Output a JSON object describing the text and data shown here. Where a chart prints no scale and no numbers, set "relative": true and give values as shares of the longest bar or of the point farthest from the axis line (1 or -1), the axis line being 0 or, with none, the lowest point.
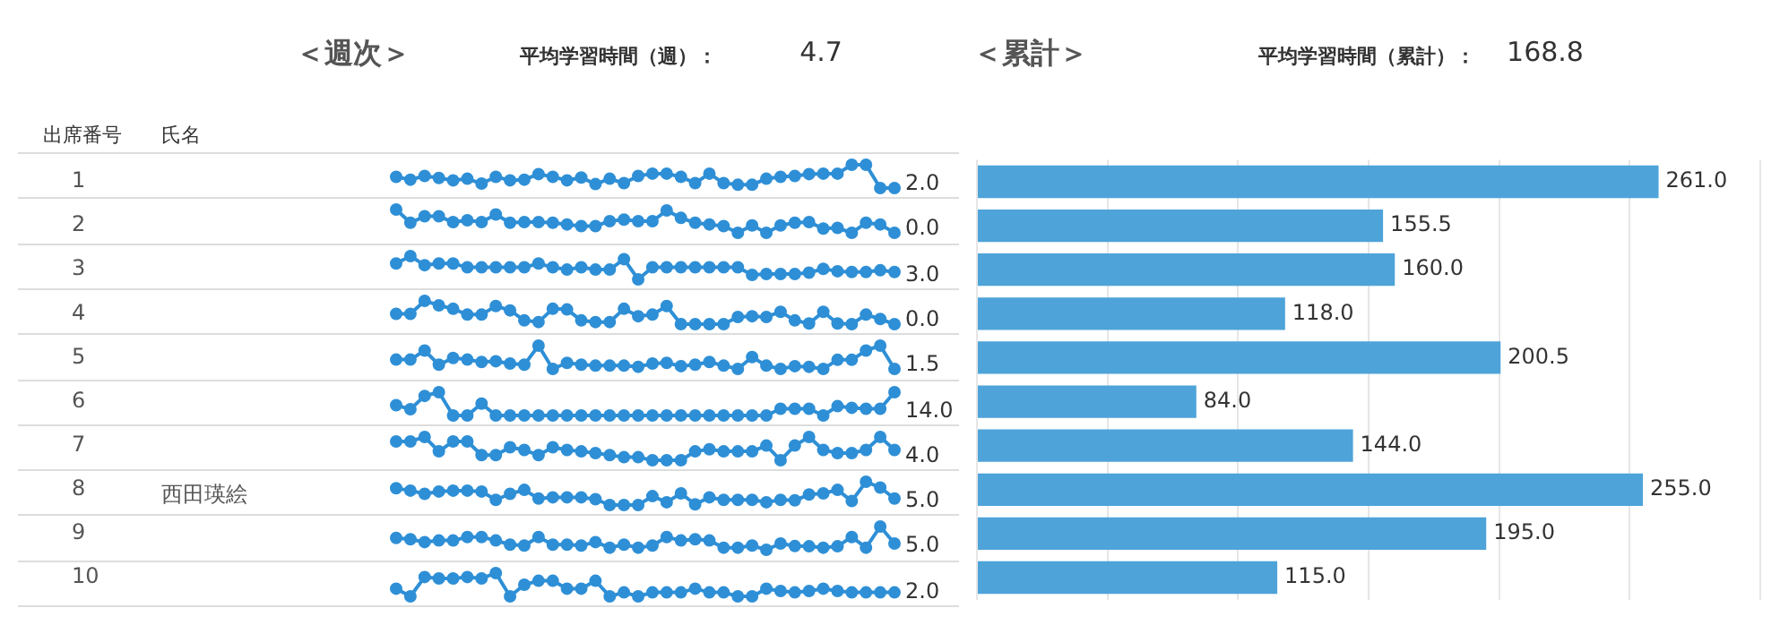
{
  "chart_data": [
    {
      "type": "other",
      "title": "＜週次＞",
      "annotations": [
        "平均学習時間（週）：",
        "4.7",
        "出席番号",
        "氏名",
        "西田瑛絵"
      ]
    },
    {
      "type": "line",
      "relative": true,
      "tick_labels": false,
      "marker": "circle",
      "color": "#2e8fd6",
      "categories": [
        null,
        null,
        null,
        null,
        null,
        null,
        null,
        null,
        null,
        null,
        null,
        null,
        null,
        null,
        null,
        null,
        null,
        null,
        null,
        null,
        null,
        null,
        null,
        null,
        null,
        null,
        null,
        null,
        null,
        null,
        null,
        null,
        null,
        null,
        null,
        null
      ],
      "values": [
        0.48,
        0.36,
        0.52,
        0.43,
        0.33,
        0.4,
        0.19,
        0.48,
        0.33,
        0.36,
        0.6,
        0.48,
        0.33,
        0.45,
        0.17,
        0.4,
        0.21,
        0.52,
        0.62,
        0.62,
        0.48,
        0.21,
        0.62,
        0.21,
        0.14,
        0.14,
        0.4,
        0.48,
        0.52,
        0.6,
        0.62,
        0.62,
        1,
        1,
        0,
        0
      ],
      "annotations": [
        "2.0"
      ]
    },
    {
      "type": "line",
      "relative": true,
      "tick_labels": false,
      "marker": "circle",
      "color": "#2e8fd6",
      "categories": [
        null,
        null,
        null,
        null,
        null,
        null,
        null,
        null,
        null,
        null,
        null,
        null,
        null,
        null,
        null,
        null,
        null,
        null,
        null,
        null,
        null,
        null,
        null,
        null,
        null,
        null,
        null,
        null,
        null,
        null,
        null,
        null,
        null,
        null,
        null,
        null
      ],
      "values": [
        1,
        0.43,
        0.71,
        0.71,
        0.46,
        0.54,
        0.46,
        0.79,
        0.43,
        0.46,
        0.46,
        0.43,
        0.36,
        0.29,
        0.29,
        0.5,
        0.57,
        0.5,
        0.5,
        0.96,
        0.64,
        0.43,
        0.36,
        0.29,
        0,
        0.32,
        0,
        0.32,
        0.43,
        0.46,
        0.18,
        0.21,
        0,
        0.43,
        0.36,
        0
      ],
      "annotations": [
        "0.0"
      ]
    },
    {
      "type": "line",
      "relative": true,
      "tick_labels": false,
      "marker": "circle",
      "color": "#2e8fd6",
      "categories": [
        null,
        null,
        null,
        null,
        null,
        null,
        null,
        null,
        null,
        null,
        null,
        null,
        null,
        null,
        null,
        null,
        null,
        null,
        null,
        null,
        null,
        null,
        null,
        null,
        null,
        null,
        null,
        null,
        null,
        null,
        null,
        null,
        null,
        null,
        null,
        null
      ],
      "values": [
        0.68,
        1,
        0.61,
        0.68,
        0.68,
        0.52,
        0.52,
        0.52,
        0.52,
        0.52,
        0.68,
        0.52,
        0.42,
        0.52,
        0.42,
        0.42,
        0.87,
        0,
        0.52,
        0.52,
        0.52,
        0.52,
        0.52,
        0.52,
        0.52,
        0.19,
        0.23,
        0.23,
        0.23,
        0.29,
        0.45,
        0.35,
        0.32,
        0.32,
        0.39,
        0.32
      ],
      "annotations": [
        "3.0"
      ]
    },
    {
      "type": "line",
      "relative": true,
      "tick_labels": false,
      "marker": "circle",
      "color": "#2e8fd6",
      "categories": [
        null,
        null,
        null,
        null,
        null,
        null,
        null,
        null,
        null,
        null,
        null,
        null,
        null,
        null,
        null,
        null,
        null,
        null,
        null,
        null,
        null,
        null,
        null,
        null,
        null,
        null,
        null,
        null,
        null,
        null,
        null,
        null,
        null,
        null,
        null,
        null
      ],
      "values": [
        0.44,
        0.44,
        1,
        0.81,
        0.66,
        0.41,
        0.41,
        0.78,
        0.59,
        0.16,
        0.09,
        0.66,
        0.63,
        0.16,
        0.09,
        0.09,
        0.66,
        0.34,
        0.41,
        0.78,
        0,
        0,
        0,
        0,
        0.31,
        0.34,
        0.31,
        0.53,
        0.16,
        0.03,
        0.53,
        0.03,
        0,
        0.41,
        0.22,
        0
      ],
      "annotations": [
        "0.0"
      ]
    },
    {
      "type": "line",
      "relative": true,
      "tick_labels": false,
      "marker": "circle",
      "color": "#2e8fd6",
      "categories": [
        null,
        null,
        null,
        null,
        null,
        null,
        null,
        null,
        null,
        null,
        null,
        null,
        null,
        null,
        null,
        null,
        null,
        null,
        null,
        null,
        null,
        null,
        null,
        null,
        null,
        null,
        null,
        null,
        null,
        null,
        null,
        null,
        null,
        null,
        null,
        null
      ],
      "values": [
        0.4,
        0.4,
        0.79,
        0.18,
        0.47,
        0.4,
        0.3,
        0.33,
        0.23,
        0.18,
        1,
        0,
        0.26,
        0.18,
        0.14,
        0.14,
        0.14,
        0.09,
        0.23,
        0.26,
        0.12,
        0.18,
        0.3,
        0.14,
        0,
        0.51,
        0.14,
        0,
        0.12,
        0.09,
        0,
        0.39,
        0.39,
        0.79,
        1,
        0
      ],
      "annotations": [
        "1.5"
      ]
    },
    {
      "type": "line",
      "relative": true,
      "tick_labels": false,
      "marker": "circle",
      "color": "#2e8fd6",
      "categories": [
        null,
        null,
        null,
        null,
        null,
        null,
        null,
        null,
        null,
        null,
        null,
        null,
        null,
        null,
        null,
        null,
        null,
        null,
        null,
        null,
        null,
        null,
        null,
        null,
        null,
        null,
        null,
        null,
        null,
        null,
        null,
        null,
        null,
        null,
        null,
        null
      ],
      "values": [
        0.44,
        0.27,
        0.84,
        1,
        0,
        0,
        0.51,
        0,
        0,
        0,
        0,
        0,
        0,
        0,
        0,
        0,
        0,
        0,
        0,
        0,
        0,
        0,
        0,
        0,
        0,
        0,
        0,
        0.29,
        0.29,
        0.29,
        0,
        0.4,
        0.33,
        0.29,
        0.29,
        1
      ],
      "annotations": [
        "14.0"
      ]
    },
    {
      "type": "line",
      "relative": true,
      "tick_labels": false,
      "marker": "circle",
      "color": "#2e8fd6",
      "categories": [
        null,
        null,
        null,
        null,
        null,
        null,
        null,
        null,
        null,
        null,
        null,
        null,
        null,
        null,
        null,
        null,
        null,
        null,
        null,
        null,
        null,
        null,
        null,
        null,
        null,
        null,
        null,
        null,
        null,
        null,
        null,
        null,
        null,
        null,
        null,
        null
      ],
      "values": [
        0.81,
        0.81,
        1,
        0.38,
        0.81,
        0.81,
        0.22,
        0.22,
        0.56,
        0.44,
        0.22,
        0.56,
        0.44,
        0.38,
        0.31,
        0.22,
        0.13,
        0.13,
        0,
        0,
        0,
        0.38,
        0.47,
        0.38,
        0.38,
        0.38,
        0.63,
        0,
        0.63,
        1,
        0.44,
        0.31,
        0.31,
        0.44,
        1,
        0.44
      ],
      "annotations": [
        "4.0"
      ]
    },
    {
      "type": "line",
      "relative": true,
      "tick_labels": false,
      "marker": "circle",
      "color": "#2e8fd6",
      "categories": [
        null,
        null,
        null,
        null,
        null,
        null,
        null,
        null,
        null,
        null,
        null,
        null,
        null,
        null,
        null,
        null,
        null,
        null,
        null,
        null,
        null,
        null,
        null,
        null,
        null,
        null,
        null,
        null,
        null,
        null,
        null,
        null,
        null,
        null,
        null,
        null
      ],
      "values": [
        0.72,
        0.62,
        0.48,
        0.58,
        0.62,
        0.62,
        0.58,
        0.22,
        0.48,
        0.65,
        0.28,
        0.33,
        0.33,
        0.33,
        0.25,
        0,
        0,
        0,
        0.38,
        0.12,
        0.5,
        0.03,
        0.33,
        0.22,
        0.22,
        0.22,
        0.12,
        0.22,
        0.2,
        0.45,
        0.5,
        0.65,
        0.17,
        1,
        0.75,
        0.28
      ],
      "annotations": [
        "5.0"
      ]
    },
    {
      "type": "line",
      "relative": true,
      "tick_labels": false,
      "marker": "circle",
      "color": "#2e8fd6",
      "categories": [
        null,
        null,
        null,
        null,
        null,
        null,
        null,
        null,
        null,
        null,
        null,
        null,
        null,
        null,
        null,
        null,
        null,
        null,
        null,
        null,
        null,
        null,
        null,
        null,
        null,
        null,
        null,
        null,
        null,
        null,
        null,
        null,
        null,
        null,
        null,
        null
      ],
      "values": [
        0.51,
        0.45,
        0.33,
        0.4,
        0.4,
        0.55,
        0.55,
        0.4,
        0.22,
        0.18,
        0.55,
        0.22,
        0.22,
        0.18,
        0.33,
        0.09,
        0.22,
        0.09,
        0.18,
        0.55,
        0.4,
        0.45,
        0.4,
        0.09,
        0.09,
        0.18,
        0,
        0.27,
        0.16,
        0.15,
        0.09,
        0.15,
        0.55,
        0.09,
        1,
        0.27
      ],
      "annotations": [
        "5.0"
      ]
    },
    {
      "type": "line",
      "relative": true,
      "tick_labels": false,
      "marker": "circle",
      "color": "#2e8fd6",
      "categories": [
        null,
        null,
        null,
        null,
        null,
        null,
        null,
        null,
        null,
        null,
        null,
        null,
        null,
        null,
        null,
        null,
        null,
        null,
        null,
        null,
        null,
        null,
        null,
        null,
        null,
        null,
        null,
        null,
        null,
        null,
        null,
        null,
        null,
        null,
        null,
        null
      ],
      "values": [
        0.33,
        0,
        0.83,
        0.77,
        0.77,
        0.83,
        0.77,
        1,
        0,
        0.5,
        0.67,
        0.67,
        0.33,
        0.33,
        0.67,
        0,
        0.17,
        0,
        0.17,
        0.17,
        0.17,
        0.33,
        0.17,
        0.17,
        0,
        0,
        0.33,
        0.23,
        0.17,
        0.23,
        0.33,
        0.23,
        0.17,
        0.17,
        0.17,
        0.17
      ],
      "annotations": [
        "2.0"
      ]
    },
    {
      "type": "bar",
      "orientation": "horizontal",
      "title": "＜累計＞",
      "annotations": [
        "平均学習時間（累計）：",
        "168.8"
      ],
      "categories": [
        "1",
        "2",
        "3",
        "4",
        "5",
        "6",
        "7",
        "8",
        "9",
        "10"
      ],
      "values": [
        261,
        155.5,
        160,
        118,
        200.5,
        84,
        144,
        255,
        195,
        115
      ],
      "value_labels": [
        "261.0",
        "155.5",
        "160.0",
        "118.0",
        "200.5",
        "84.0",
        "144.0",
        "255.0",
        "195.0",
        "115.0"
      ],
      "color": "#4ea3d9",
      "xlim": [
        0,
        302
      ],
      "xticks": [
        {
          "value": 0,
          "label": null
        },
        {
          "value": 50,
          "label": null
        },
        {
          "value": 100,
          "label": null
        },
        {
          "value": 150,
          "label": null
        },
        {
          "value": 200,
          "label": null
        },
        {
          "value": 250,
          "label": null
        },
        {
          "value": 300,
          "label": null
        }
      ],
      "grid": "x",
      "tick_labels": "y"
    }
  ]
}
